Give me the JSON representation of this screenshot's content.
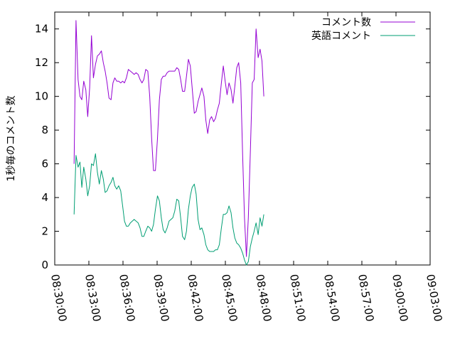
{
  "chart_data": {
    "type": "line",
    "ylabel": "1秒毎のコメント数",
    "xlabel": "",
    "title": "",
    "x_is_time": true,
    "xlim": [
      "08:30:00",
      "09:03:00"
    ],
    "ylim": [
      0,
      15
    ],
    "xticks": [
      "08:30:00",
      "08:33:00",
      "08:36:00",
      "08:39:00",
      "08:42:00",
      "08:45:00",
      "08:48:00",
      "08:51:00",
      "08:54:00",
      "08:57:00",
      "09:00:00",
      "09:03:00"
    ],
    "yticks": [
      0,
      2,
      4,
      6,
      8,
      10,
      12,
      14
    ],
    "grid": false,
    "legend_position": "top-right",
    "series": [
      {
        "name": "コメント数",
        "color": "#9400d3",
        "points": [
          [
            "08:31:42",
            6.0
          ],
          [
            "08:31:52",
            14.5
          ],
          [
            "08:32:03",
            11.0
          ],
          [
            "08:32:13",
            10.0
          ],
          [
            "08:32:23",
            9.8
          ],
          [
            "08:32:33",
            10.9
          ],
          [
            "08:32:44",
            10.4
          ],
          [
            "08:32:54",
            8.8
          ],
          [
            "08:33:04",
            10.5
          ],
          [
            "08:33:14",
            13.6
          ],
          [
            "08:33:24",
            11.1
          ],
          [
            "08:33:35",
            11.9
          ],
          [
            "08:33:45",
            12.4
          ],
          [
            "08:33:55",
            12.5
          ],
          [
            "08:34:06",
            12.7
          ],
          [
            "08:34:16",
            12.0
          ],
          [
            "08:34:26",
            11.5
          ],
          [
            "08:34:36",
            10.8
          ],
          [
            "08:34:46",
            9.9
          ],
          [
            "08:34:57",
            9.8
          ],
          [
            "08:35:07",
            10.8
          ],
          [
            "08:35:17",
            11.1
          ],
          [
            "08:35:27",
            10.9
          ],
          [
            "08:35:37",
            10.9
          ],
          [
            "08:35:48",
            10.8
          ],
          [
            "08:35:58",
            10.9
          ],
          [
            "08:36:08",
            10.8
          ],
          [
            "08:36:18",
            11.1
          ],
          [
            "08:36:28",
            11.6
          ],
          [
            "08:36:39",
            11.5
          ],
          [
            "08:36:49",
            11.4
          ],
          [
            "08:36:59",
            11.3
          ],
          [
            "08:37:09",
            11.4
          ],
          [
            "08:37:20",
            11.3
          ],
          [
            "08:37:30",
            11.0
          ],
          [
            "08:37:40",
            10.8
          ],
          [
            "08:37:50",
            11.0
          ],
          [
            "08:38:00",
            11.6
          ],
          [
            "08:38:11",
            11.5
          ],
          [
            "08:38:21",
            10.0
          ],
          [
            "08:38:31",
            7.5
          ],
          [
            "08:38:41",
            5.6
          ],
          [
            "08:38:51",
            5.6
          ],
          [
            "08:39:02",
            7.5
          ],
          [
            "08:39:12",
            9.8
          ],
          [
            "08:39:22",
            11.0
          ],
          [
            "08:39:32",
            11.2
          ],
          [
            "08:39:42",
            11.2
          ],
          [
            "08:39:53",
            11.4
          ],
          [
            "08:40:03",
            11.5
          ],
          [
            "08:40:13",
            11.5
          ],
          [
            "08:40:23",
            11.5
          ],
          [
            "08:40:33",
            11.5
          ],
          [
            "08:40:44",
            11.7
          ],
          [
            "08:40:54",
            11.6
          ],
          [
            "08:41:04",
            11.0
          ],
          [
            "08:41:14",
            10.3
          ],
          [
            "08:41:25",
            10.3
          ],
          [
            "08:41:35",
            11.2
          ],
          [
            "08:41:45",
            12.2
          ],
          [
            "08:41:55",
            11.8
          ],
          [
            "08:42:05",
            10.5
          ],
          [
            "08:42:16",
            9.0
          ],
          [
            "08:42:26",
            9.1
          ],
          [
            "08:42:36",
            9.7
          ],
          [
            "08:42:46",
            10.1
          ],
          [
            "08:42:56",
            10.5
          ],
          [
            "08:43:07",
            10.0
          ],
          [
            "08:43:17",
            8.6
          ],
          [
            "08:43:27",
            7.8
          ],
          [
            "08:43:37",
            8.6
          ],
          [
            "08:43:47",
            8.8
          ],
          [
            "08:43:58",
            8.5
          ],
          [
            "08:44:08",
            8.7
          ],
          [
            "08:44:18",
            9.2
          ],
          [
            "08:44:28",
            9.6
          ],
          [
            "08:44:39",
            10.8
          ],
          [
            "08:44:49",
            11.8
          ],
          [
            "08:44:59",
            10.9
          ],
          [
            "08:45:09",
            10.1
          ],
          [
            "08:45:19",
            10.8
          ],
          [
            "08:45:30",
            10.4
          ],
          [
            "08:45:40",
            9.6
          ],
          [
            "08:45:50",
            10.6
          ],
          [
            "08:46:00",
            11.7
          ],
          [
            "08:46:10",
            12.0
          ],
          [
            "08:46:21",
            10.8
          ],
          [
            "08:46:31",
            6.5
          ],
          [
            "08:46:41",
            2.8
          ],
          [
            "08:46:51",
            0.5
          ],
          [
            "08:47:01",
            2.8
          ],
          [
            "08:47:12",
            6.8
          ],
          [
            "08:47:22",
            10.8
          ],
          [
            "08:47:32",
            11.0
          ],
          [
            "08:47:42",
            14.0
          ],
          [
            "08:47:53",
            12.3
          ],
          [
            "08:48:03",
            12.8
          ],
          [
            "08:48:13",
            12.1
          ],
          [
            "08:48:23",
            10.0
          ]
        ]
      },
      {
        "name": "英語コメント",
        "color": "#009e73",
        "points": [
          [
            "08:31:42",
            3.0
          ],
          [
            "08:31:52",
            6.5
          ],
          [
            "08:32:03",
            5.8
          ],
          [
            "08:32:13",
            6.1
          ],
          [
            "08:32:23",
            4.6
          ],
          [
            "08:32:33",
            5.8
          ],
          [
            "08:32:44",
            5.1
          ],
          [
            "08:32:54",
            4.1
          ],
          [
            "08:33:04",
            4.7
          ],
          [
            "08:33:14",
            6.0
          ],
          [
            "08:33:24",
            5.9
          ],
          [
            "08:33:35",
            6.6
          ],
          [
            "08:33:45",
            5.5
          ],
          [
            "08:33:55",
            4.8
          ],
          [
            "08:34:06",
            5.6
          ],
          [
            "08:34:16",
            5.1
          ],
          [
            "08:34:26",
            4.3
          ],
          [
            "08:34:36",
            4.4
          ],
          [
            "08:34:46",
            4.7
          ],
          [
            "08:34:57",
            4.9
          ],
          [
            "08:35:07",
            5.2
          ],
          [
            "08:35:17",
            4.7
          ],
          [
            "08:35:27",
            4.5
          ],
          [
            "08:35:37",
            4.7
          ],
          [
            "08:35:48",
            4.4
          ],
          [
            "08:35:58",
            3.5
          ],
          [
            "08:36:08",
            2.6
          ],
          [
            "08:36:18",
            2.3
          ],
          [
            "08:36:28",
            2.3
          ],
          [
            "08:36:39",
            2.5
          ],
          [
            "08:36:49",
            2.6
          ],
          [
            "08:36:59",
            2.7
          ],
          [
            "08:37:09",
            2.6
          ],
          [
            "08:37:20",
            2.5
          ],
          [
            "08:37:30",
            2.2
          ],
          [
            "08:37:40",
            1.7
          ],
          [
            "08:37:50",
            1.7
          ],
          [
            "08:38:00",
            2.0
          ],
          [
            "08:38:11",
            2.3
          ],
          [
            "08:38:21",
            2.2
          ],
          [
            "08:38:31",
            2.0
          ],
          [
            "08:38:41",
            2.4
          ],
          [
            "08:38:51",
            3.3
          ],
          [
            "08:39:02",
            4.1
          ],
          [
            "08:39:12",
            3.8
          ],
          [
            "08:39:22",
            2.8
          ],
          [
            "08:39:32",
            2.1
          ],
          [
            "08:39:42",
            1.9
          ],
          [
            "08:39:53",
            2.2
          ],
          [
            "08:40:03",
            2.6
          ],
          [
            "08:40:13",
            2.7
          ],
          [
            "08:40:23",
            2.8
          ],
          [
            "08:40:33",
            3.2
          ],
          [
            "08:40:44",
            3.9
          ],
          [
            "08:40:54",
            3.8
          ],
          [
            "08:41:04",
            2.8
          ],
          [
            "08:41:14",
            1.7
          ],
          [
            "08:41:25",
            1.5
          ],
          [
            "08:41:35",
            2.0
          ],
          [
            "08:41:45",
            3.3
          ],
          [
            "08:41:55",
            4.1
          ],
          [
            "08:42:05",
            4.6
          ],
          [
            "08:42:16",
            4.8
          ],
          [
            "08:42:26",
            4.2
          ],
          [
            "08:42:36",
            2.7
          ],
          [
            "08:42:46",
            2.1
          ],
          [
            "08:42:56",
            2.2
          ],
          [
            "08:43:07",
            1.8
          ],
          [
            "08:43:17",
            1.2
          ],
          [
            "08:43:27",
            0.9
          ],
          [
            "08:43:37",
            0.8
          ],
          [
            "08:43:47",
            0.8
          ],
          [
            "08:43:58",
            0.8
          ],
          [
            "08:44:08",
            0.9
          ],
          [
            "08:44:18",
            0.9
          ],
          [
            "08:44:28",
            1.2
          ],
          [
            "08:44:39",
            2.2
          ],
          [
            "08:44:49",
            3.0
          ],
          [
            "08:44:59",
            3.0
          ],
          [
            "08:45:09",
            3.1
          ],
          [
            "08:45:19",
            3.5
          ],
          [
            "08:45:30",
            3.1
          ],
          [
            "08:45:40",
            2.2
          ],
          [
            "08:45:50",
            1.6
          ],
          [
            "08:46:00",
            1.3
          ],
          [
            "08:46:10",
            1.2
          ],
          [
            "08:46:21",
            1.0
          ],
          [
            "08:46:31",
            0.7
          ],
          [
            "08:46:41",
            0.3
          ],
          [
            "08:46:51",
            0.0
          ],
          [
            "08:47:01",
            0.2
          ],
          [
            "08:47:12",
            1.1
          ],
          [
            "08:47:22",
            1.6
          ],
          [
            "08:47:32",
            2.0
          ],
          [
            "08:47:42",
            2.5
          ],
          [
            "08:47:53",
            1.8
          ],
          [
            "08:48:03",
            2.8
          ],
          [
            "08:48:13",
            2.3
          ],
          [
            "08:48:23",
            3.0
          ]
        ]
      }
    ]
  }
}
